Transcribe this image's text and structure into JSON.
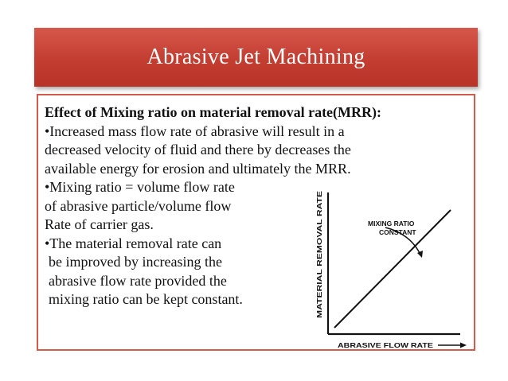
{
  "slide": {
    "title": "Abrasive Jet Machining",
    "heading": "Effect of Mixing ratio on material removal rate(MRR):",
    "lines": [
      "•Increased mass flow rate of abrasive will result in a",
      "decreased velocity of fluid and there by decreases the",
      "available energy for erosion and ultimately the MRR.",
      "•Mixing ratio = volume flow rate",
      "of abrasive particle/volume flow",
      "Rate of carrier gas.",
      "•The material removal rate can",
      " be improved by increasing the",
      " abrasive flow rate provided the",
      " mixing ratio can be kept constant."
    ]
  },
  "chart_data": {
    "type": "line",
    "xlabel": "ABRASIVE FLOW RATE",
    "ylabel": "MATERIAL REMOVAL RATE",
    "annotation_line1": "MIXING RATIO",
    "annotation_line2": "CONSTANT",
    "series": [
      {
        "x": [
          0,
          1
        ],
        "values": [
          0,
          1
        ]
      }
    ]
  }
}
